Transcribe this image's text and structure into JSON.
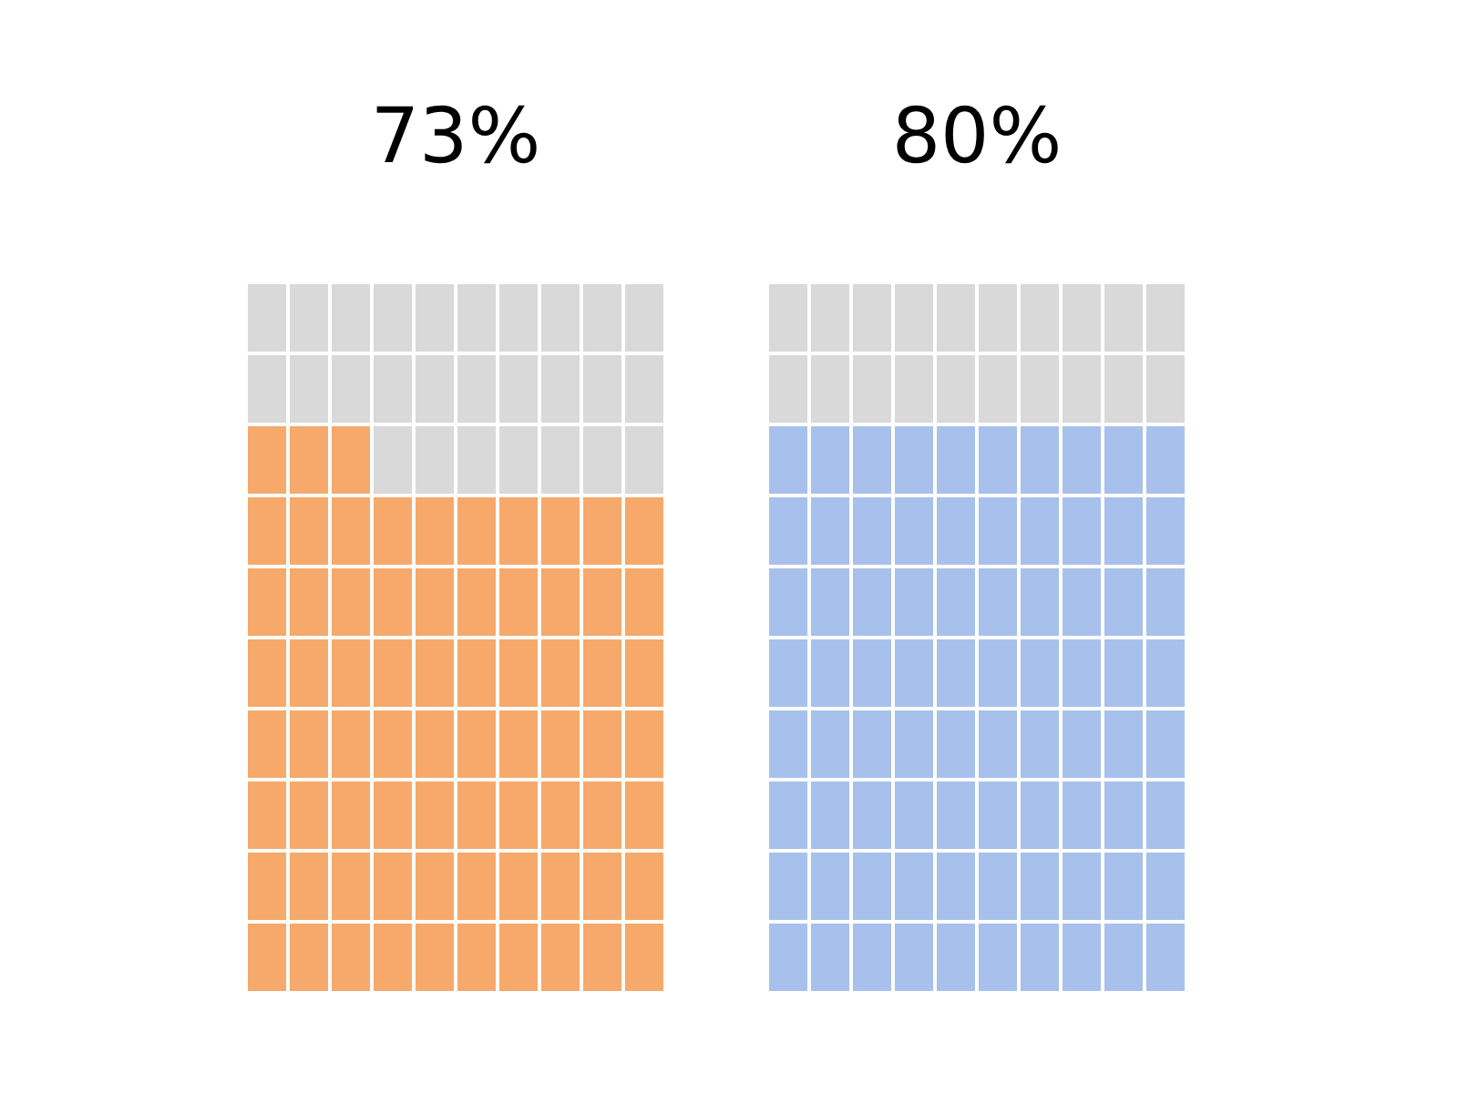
{
  "chart_data": [
    {
      "type": "other",
      "values": [
        73
      ],
      "value_labels": [
        "73%"
      ],
      "color": "#f6a96a"
    },
    {
      "type": "other",
      "values": [
        80
      ],
      "value_labels": [
        "80%"
      ],
      "color": "#a8c0ec"
    }
  ]
}
